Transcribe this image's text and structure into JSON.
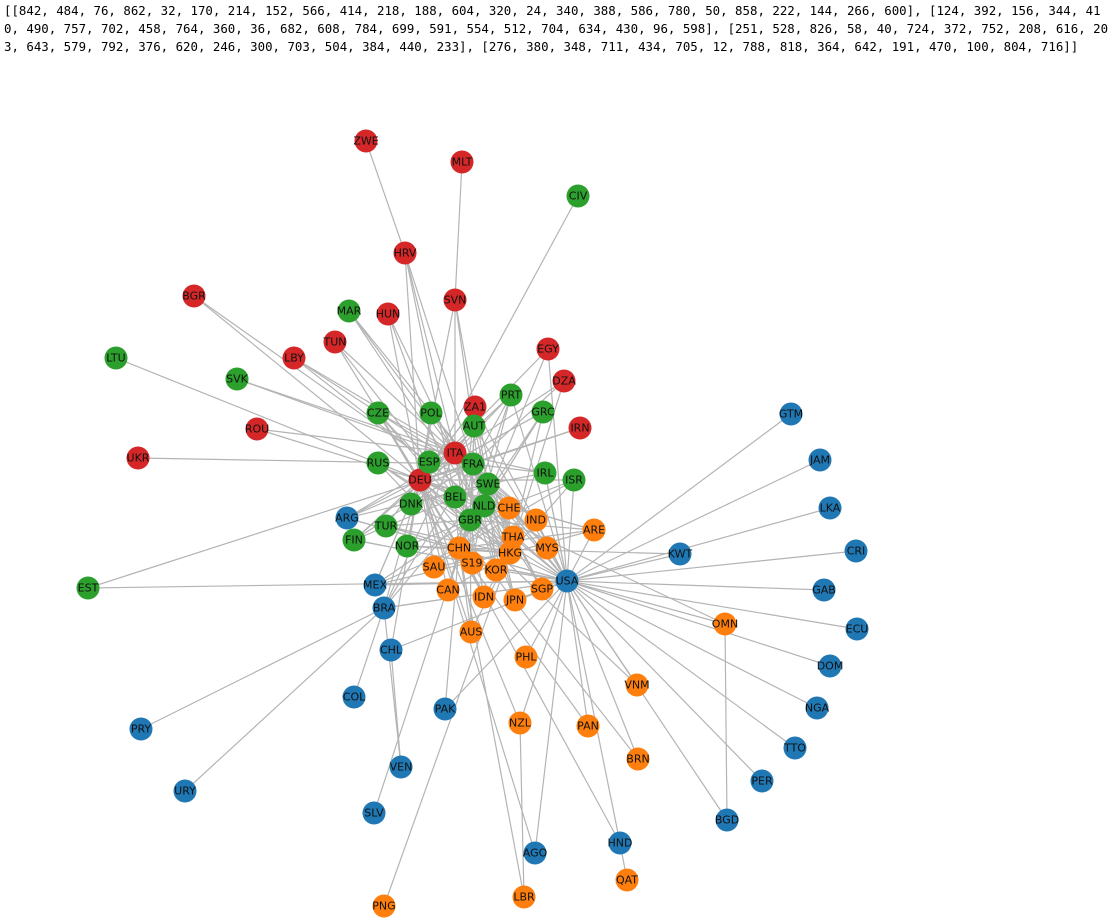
{
  "output": {
    "text": "[[842, 484, 76, 862, 32, 170, 214, 152, 566, 414, 218, 188, 604, 320, 24, 340, 388, 586, 780, 50, 858, 222, 144, 266, 600], [124, 392, 156, 344, 410, 490, 757, 702, 458, 764, 360, 36, 682, 608, 784, 699, 591, 554, 512, 704, 634, 430, 96, 598], [251, 528, 826, 58, 40, 724, 372, 752, 208, 616, 203, 643, 579, 792, 376, 620, 246, 300, 703, 504, 384, 440, 233], [276, 380, 348, 711, 434, 705, 12, 788, 818, 364, 642, 191, 470, 100, 804, 716]]"
  },
  "graph": {
    "groups": [
      {
        "color": "#d62728",
        "nodes": [
          "ZWE",
          "MLT",
          "HRV",
          "SVN",
          "BGR",
          "HUN",
          "TUN",
          "LBY",
          "EGY",
          "DZA",
          "ZA1",
          "IRN",
          "ROU",
          "ITA",
          "UKR",
          "DEU"
        ]
      },
      {
        "color": "#2ca02c",
        "nodes": [
          "CIV",
          "MAR",
          "LTU",
          "SVK",
          "PRT",
          "CZE",
          "POL",
          "GRC",
          "AUT",
          "RUS",
          "ESP",
          "FRA",
          "IRL",
          "ISR",
          "SWE",
          "BEL",
          "DNK",
          "NLD",
          "GBR",
          "TUR",
          "FIN",
          "NOR",
          "EST"
        ]
      },
      {
        "color": "#1f77b4",
        "nodes": [
          "GTM",
          "JAM",
          "LKA",
          "CRI",
          "ARG",
          "KWT",
          "USA",
          "MEX",
          "GAB",
          "BRA",
          "ECU",
          "DOM",
          "CHL",
          "COL",
          "PAK",
          "NGA",
          "TTO",
          "PRY",
          "VEN",
          "PER",
          "URY",
          "SLV",
          "BGD",
          "HND",
          "AGO"
        ]
      },
      {
        "color": "#ff7f0e",
        "nodes": [
          "CHE",
          "IND",
          "ARE",
          "THA",
          "CHN",
          "MYS",
          "HKG",
          "S19",
          "SAU",
          "KOR",
          "CAN",
          "SGP",
          "IDN",
          "JPN",
          "AUS",
          "OMN",
          "PHL",
          "VNM",
          "NZL",
          "PAN",
          "BRN",
          "QAT",
          "LBR",
          "PNG"
        ]
      }
    ]
  }
}
